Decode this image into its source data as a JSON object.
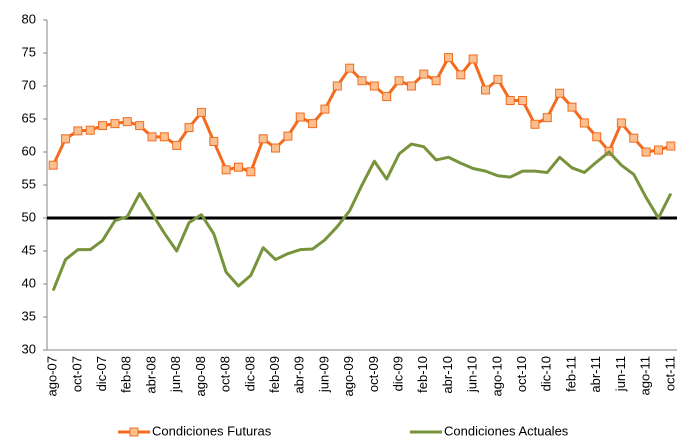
{
  "chart_data": {
    "type": "line",
    "categories": [
      "ago-07",
      null,
      "oct-07",
      null,
      "dic-07",
      null,
      "feb-08",
      null,
      "abr-08",
      null,
      "jun-08",
      null,
      "ago-08",
      null,
      "oct-08",
      null,
      "dic-08",
      null,
      "feb-09",
      null,
      "abr-09",
      null,
      "jun-09",
      null,
      "ago-09",
      null,
      "oct-09",
      null,
      "dic-09",
      null,
      "feb-10",
      null,
      "abr-10",
      null,
      "jun-10",
      null,
      "ago-10",
      null,
      "oct-10",
      null,
      "dic-10",
      null,
      "feb-11",
      null,
      "abr-11",
      null,
      "jun-11",
      null,
      "ago-11",
      null,
      "oct-11"
    ],
    "series": [
      {
        "name": "Condiciones Futuras",
        "color": "#f26b1f",
        "marker": "square",
        "values": [
          58,
          62,
          63.2,
          63.3,
          64,
          64.3,
          64.6,
          64,
          62.3,
          62.3,
          61,
          63.7,
          66,
          61.6,
          57.3,
          57.7,
          57,
          62,
          60.6,
          62.4,
          65.3,
          64.3,
          66.5,
          70,
          72.7,
          70.8,
          70,
          68.4,
          70.8,
          70,
          71.8,
          70.8,
          74.3,
          71.7,
          74.1,
          69.4,
          71,
          67.8,
          67.8,
          64.2,
          65.2,
          68.9,
          66.8,
          64.4,
          62.3,
          60.1,
          64.4,
          62.1,
          60,
          60.3,
          60.9
        ]
      },
      {
        "name": "Condiciones Actuales",
        "color": "#77933c",
        "values": [
          39,
          43.7,
          45.2,
          45.2,
          46.6,
          49.6,
          50.2,
          53.7,
          50.7,
          47.7,
          45,
          49.3,
          50.5,
          47.6,
          41.8,
          39.7,
          41.3,
          45.5,
          43.7,
          44.6,
          45.2,
          45.3,
          46.7,
          48.7,
          51.1,
          55,
          58.6,
          55.9,
          59.7,
          61.2,
          60.8,
          58.8,
          59.2,
          58.3,
          57.5,
          57.1,
          56.4,
          56.2,
          57.1,
          57.1,
          56.9,
          59.2,
          57.6,
          56.9,
          58.5,
          60,
          58,
          56.6,
          53.1,
          50,
          53.7
        ]
      }
    ],
    "reference_line": 50,
    "ylim": [
      30,
      80
    ],
    "yticks": [
      30,
      35,
      40,
      45,
      50,
      55,
      60,
      65,
      70,
      75,
      80
    ],
    "legend": "bottom"
  }
}
